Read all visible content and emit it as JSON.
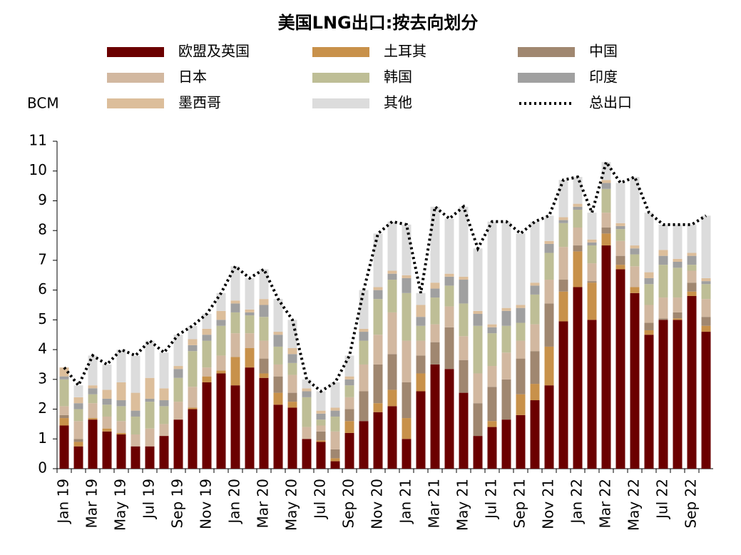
{
  "chart_data": {
    "type": "bar",
    "stacked": true,
    "title": "美国LNG出口:按去向划分",
    "y_label": "BCM",
    "categories": [
      "Jan 19",
      null,
      "Mar 19",
      null,
      "May 19",
      null,
      "Jul 19",
      null,
      "Sep 19",
      null,
      "Nov 19",
      null,
      "Jan 20",
      null,
      "Mar 20",
      null,
      "May 20",
      null,
      "Jul 20",
      null,
      "Sep 20",
      null,
      "Nov 20",
      null,
      "Jan 21",
      null,
      "Mar 21",
      null,
      "May 21",
      null,
      "Jul 21",
      null,
      "Sep 21",
      null,
      "Nov 21",
      null,
      "Jan 22",
      null,
      "Mar 22",
      null,
      "May 22",
      null,
      "Jul 22",
      null,
      "Sep 22",
      null
    ],
    "ylim": [
      0,
      11
    ],
    "yticks": [
      0,
      1,
      2,
      3,
      4,
      5,
      6,
      7,
      8,
      9,
      10,
      11
    ],
    "series": [
      {
        "name": "欧盟及英国",
        "color": "#6b0000",
        "values": [
          1.45,
          0.75,
          1.65,
          1.25,
          1.15,
          0.75,
          0.75,
          1.1,
          1.65,
          2.0,
          2.9,
          3.2,
          2.8,
          3.4,
          3.05,
          2.15,
          2.05,
          1.0,
          0.9,
          0.25,
          1.2,
          1.6,
          1.9,
          2.1,
          1.0,
          2.6,
          3.5,
          3.35,
          2.55,
          1.1,
          1.4,
          1.65,
          1.8,
          2.3,
          2.8,
          4.95,
          6.1,
          5.0,
          7.5,
          6.7,
          5.9,
          4.5,
          5.0,
          5.0,
          5.8,
          4.6
        ]
      },
      {
        "name": "土耳其",
        "color": "#c8914a",
        "values": [
          0.25,
          0.15,
          0.05,
          0.1,
          0.05,
          0,
          0,
          0,
          0,
          0.05,
          0.2,
          0.1,
          0.95,
          0.65,
          0.15,
          0.4,
          0.2,
          0,
          0.05,
          0.1,
          0.4,
          0,
          0.3,
          0.55,
          0.7,
          0.6,
          0,
          0,
          0,
          0,
          0.2,
          0,
          0.7,
          0.55,
          1.3,
          1.0,
          1.2,
          1.25,
          0.4,
          0.15,
          0.2,
          0.15,
          0,
          0.05,
          0.15,
          0.2
        ]
      },
      {
        "name": "中国",
        "color": "#a08770",
        "values": [
          0.1,
          0.1,
          0,
          0,
          0,
          0,
          0,
          0,
          0,
          0,
          0,
          0,
          0,
          0,
          0.5,
          0.55,
          0.3,
          0,
          0.3,
          0.3,
          0.4,
          1.0,
          1.3,
          1.2,
          1.2,
          0.6,
          0.75,
          1.4,
          1.1,
          1.1,
          1.15,
          1.35,
          1.2,
          1.1,
          1.45,
          0.4,
          0.2,
          0.05,
          0.2,
          0.3,
          0,
          0.25,
          0.05,
          0.2,
          0.3,
          0.3
        ]
      },
      {
        "name": "日本",
        "color": "#d2b8a0",
        "values": [
          0.3,
          0.6,
          0.5,
          0.4,
          0.4,
          0.4,
          0.6,
          0.4,
          0.6,
          0.7,
          0.3,
          0.5,
          0.8,
          0.5,
          0.6,
          0.4,
          0.6,
          0.4,
          0.2,
          0.6,
          0.4,
          0.9,
          1.0,
          1.4,
          1.4,
          0.5,
          0.6,
          0.7,
          0.8,
          1.0,
          0.7,
          0.9,
          0.6,
          0.9,
          0.8,
          1.1,
          0.6,
          0.6,
          0.5,
          0.5,
          0.7,
          0.6,
          0.7,
          0.5,
          0.4,
          0.6
        ]
      },
      {
        "name": "韩国",
        "color": "#bebe96",
        "values": [
          0.9,
          0.4,
          0.3,
          0.4,
          0.5,
          0.6,
          0.9,
          0.6,
          0.8,
          1.2,
          0.9,
          1.0,
          0.7,
          0.6,
          0.8,
          0.6,
          0.4,
          1.0,
          0.2,
          0.5,
          0.4,
          0.8,
          1.2,
          1.1,
          1.6,
          0.5,
          0.9,
          0.7,
          1.1,
          1.6,
          1.1,
          0.9,
          0.6,
          1.0,
          0.9,
          0.8,
          0.6,
          0.6,
          0.8,
          0.4,
          0.4,
          0.7,
          1.1,
          1.0,
          0.2,
          0.5
        ]
      },
      {
        "name": "印度",
        "color": "#a0a0a0",
        "values": [
          0.1,
          0.2,
          0.2,
          0.2,
          0.2,
          0.2,
          0.1,
          0.2,
          0.3,
          0.2,
          0.2,
          0.2,
          0.3,
          0.1,
          0.4,
          0.4,
          0.3,
          0.2,
          0.2,
          0.2,
          0.2,
          0.3,
          0.3,
          0.2,
          0.5,
          0.3,
          0.3,
          0.3,
          0.8,
          0.4,
          0.2,
          0.5,
          0.5,
          0.3,
          0.3,
          0.1,
          0.1,
          0.1,
          0.2,
          0.1,
          0.2,
          0.2,
          0.3,
          0.2,
          0.3,
          0.1
        ]
      },
      {
        "name": "墨西哥",
        "color": "#dcbe9b",
        "values": [
          0.3,
          0.2,
          0.1,
          0.3,
          0.6,
          0.6,
          0.7,
          0.4,
          0.1,
          0.2,
          0.2,
          0.3,
          0.1,
          0.1,
          0.2,
          0.1,
          0.2,
          0.1,
          0.1,
          0.1,
          0.1,
          0.1,
          0.1,
          0.1,
          0.1,
          0.4,
          0.2,
          0.1,
          0.1,
          0.1,
          0.1,
          0.1,
          0.1,
          0.1,
          0.1,
          0.1,
          0.1,
          0.1,
          0.1,
          0.1,
          0.1,
          0.2,
          0.2,
          0.1,
          0.1,
          0.1
        ]
      },
      {
        "name": "其他",
        "color": "#dcdcdc",
        "values": [
          0,
          0.4,
          1.0,
          0.85,
          1.1,
          1.25,
          1.25,
          1.2,
          1.05,
          0.45,
          0.5,
          0.6,
          1.15,
          1.05,
          1.0,
          1.1,
          0.95,
          0.3,
          0.65,
          0.85,
          0.7,
          1.3,
          1.8,
          1.65,
          1.7,
          0.4,
          2.55,
          1.85,
          2.35,
          2.1,
          3.45,
          2.9,
          2.4,
          2.05,
          0.85,
          1.25,
          0.9,
          0.9,
          0.6,
          1.35,
          2.3,
          2.0,
          0.85,
          1.15,
          0.95,
          2.1
        ]
      },
      {
        "name": "总出口",
        "type": "line",
        "style": "dotted",
        "color": "#000000",
        "values": [
          3.4,
          2.8,
          3.8,
          3.5,
          4.0,
          3.8,
          4.3,
          3.9,
          4.5,
          4.8,
          5.2,
          5.9,
          6.8,
          6.4,
          6.7,
          5.7,
          5.0,
          3.0,
          2.6,
          2.9,
          3.8,
          6.0,
          7.9,
          8.3,
          8.2,
          5.9,
          8.8,
          8.4,
          8.8,
          7.4,
          8.3,
          8.3,
          7.9,
          8.3,
          8.5,
          9.7,
          9.8,
          8.6,
          10.3,
          9.6,
          9.8,
          8.6,
          8.2,
          8.2,
          8.2,
          8.5
        ]
      }
    ]
  }
}
